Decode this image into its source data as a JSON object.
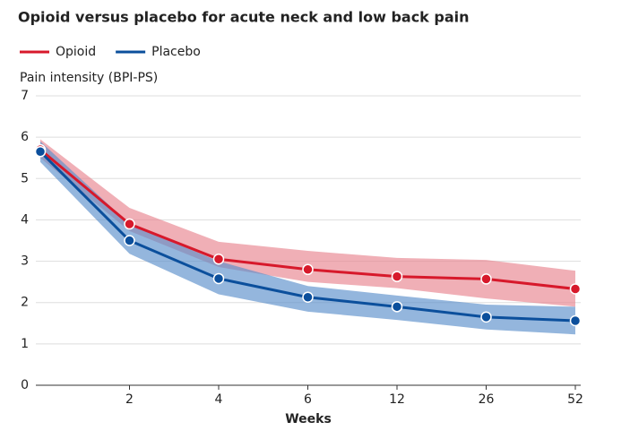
{
  "chart_data": {
    "type": "line",
    "title": "Opioid versus placebo for acute neck and low back pain",
    "y_label": "Pain intensity (BPI-PS)",
    "x_label": "Weeks",
    "categories": [
      null,
      "2",
      "4",
      "6",
      "12",
      "26",
      "52"
    ],
    "series": [
      {
        "name": "Opioid",
        "color": "#d7192b",
        "band_color": "#e8848f",
        "values": [
          5.7,
          3.9,
          3.05,
          2.8,
          2.63,
          2.57,
          2.33
        ],
        "upper": [
          5.95,
          4.29,
          3.47,
          3.25,
          3.08,
          3.03,
          2.77
        ],
        "lower": [
          5.5,
          3.73,
          2.86,
          2.5,
          2.35,
          2.1,
          1.9
        ]
      },
      {
        "name": "Placebo",
        "color": "#0b4f9c",
        "band_color": "#5b8fcb",
        "values": [
          5.65,
          3.5,
          2.58,
          2.13,
          1.9,
          1.65,
          1.56
        ],
        "upper": [
          5.9,
          3.9,
          3.0,
          2.4,
          2.17,
          1.95,
          1.9
        ],
        "lower": [
          5.4,
          3.18,
          2.2,
          1.78,
          1.58,
          1.35,
          1.23
        ]
      }
    ],
    "ylim": [
      0,
      7
    ],
    "yticks": [
      0,
      1,
      2,
      3,
      4,
      5,
      6,
      7
    ],
    "grid": true
  }
}
